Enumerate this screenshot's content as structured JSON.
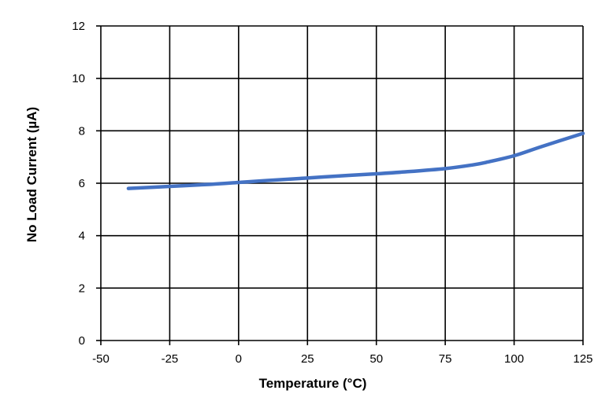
{
  "chart_data": {
    "type": "line",
    "title": "",
    "xlabel": "Temperature (°C)",
    "ylabel": "No Load Current (µA)",
    "xlim": [
      -50,
      125
    ],
    "ylim": [
      0,
      12
    ],
    "x_ticks": [
      -50,
      -25,
      0,
      25,
      50,
      75,
      100,
      125
    ],
    "y_ticks": [
      0,
      2,
      4,
      6,
      8,
      10,
      12
    ],
    "grid": true,
    "legend": "none",
    "series": [
      {
        "color": "#4472C4",
        "x": [
          -40,
          -25,
          -10,
          0,
          10,
          25,
          40,
          50,
          60,
          75,
          85,
          90,
          100,
          110,
          125
        ],
        "y": [
          5.8,
          5.88,
          5.96,
          6.03,
          6.1,
          6.2,
          6.3,
          6.36,
          6.43,
          6.56,
          6.7,
          6.8,
          7.05,
          7.4,
          7.9
        ]
      }
    ]
  }
}
